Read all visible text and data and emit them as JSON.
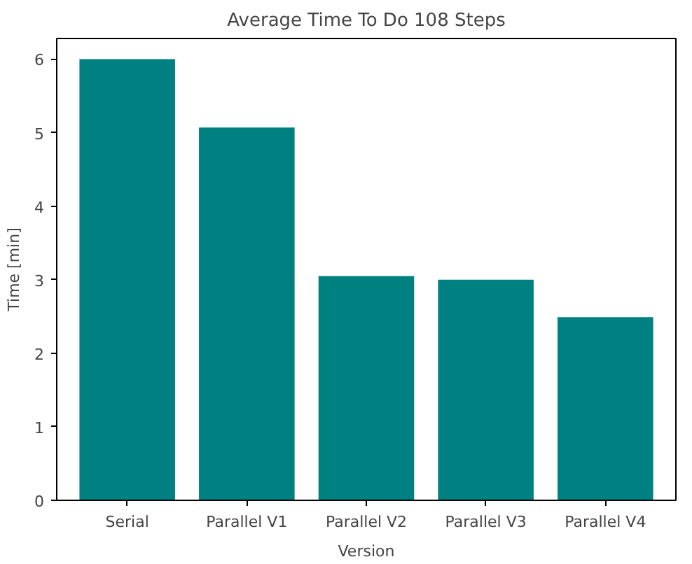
{
  "chart_data": {
    "type": "bar",
    "title": "Average Time To Do 108 Steps",
    "xlabel": "Version",
    "ylabel": "Time [min]",
    "categories": [
      "Serial",
      "Parallel V1",
      "Parallel V2",
      "Parallel V3",
      "Parallel V4"
    ],
    "values": [
      6.0,
      5.07,
      3.05,
      3.0,
      2.49
    ],
    "color": "#008080",
    "ylim": [
      0,
      6.28
    ],
    "yticks": [
      0,
      1,
      2,
      3,
      4,
      5,
      6
    ],
    "grid": false
  }
}
